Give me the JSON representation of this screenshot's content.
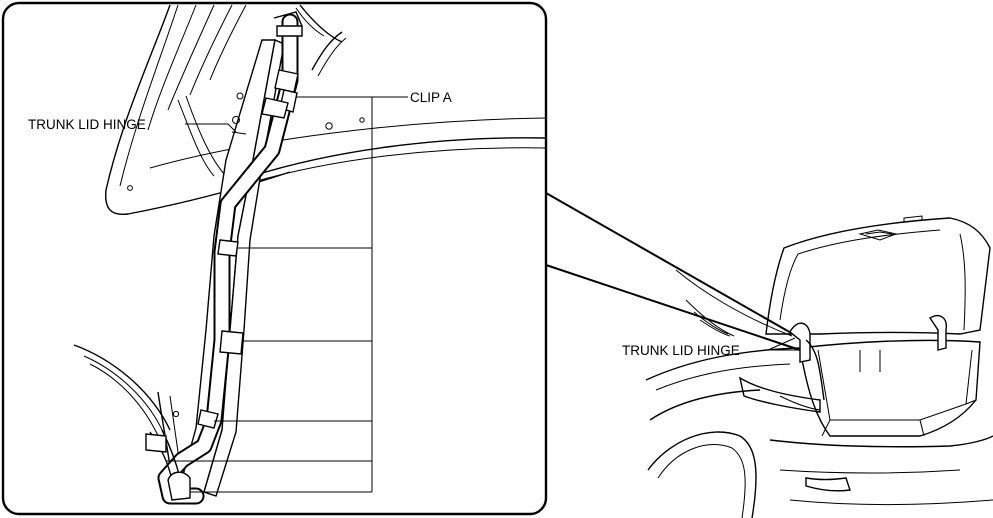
{
  "detail_view": {
    "trunk_lid_hinge_label": "TRUNK LID HINGE",
    "clip_a_label": "CLIP A"
  },
  "overview": {
    "trunk_lid_hinge_label": "TRUNK LID HINGE"
  }
}
